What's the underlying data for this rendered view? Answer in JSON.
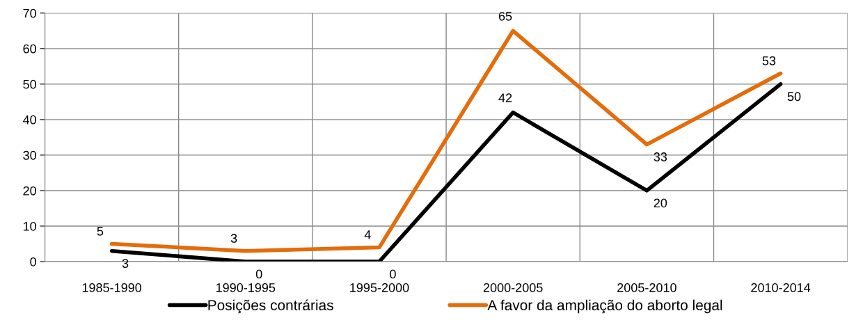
{
  "chart_data": {
    "type": "line",
    "categories": [
      "1985-1990",
      "1990-1995",
      "1995-2000",
      "2000-2005",
      "2005-2010",
      "2010-2014"
    ],
    "series": [
      {
        "name": "Posições contrárias",
        "color": "#000000",
        "values": [
          3,
          0,
          0,
          42,
          20,
          50
        ]
      },
      {
        "name": "A favor da ampliação do aborto legal",
        "color": "#e46c0a",
        "values": [
          5,
          3,
          4,
          65,
          33,
          53
        ]
      }
    ],
    "ylim": [
      0,
      70
    ],
    "yticks": [
      0,
      10,
      20,
      30,
      40,
      50,
      60,
      70
    ],
    "grid": true,
    "legend": "bottom",
    "data_labels": true,
    "marker": "none",
    "line_style": "solid"
  }
}
